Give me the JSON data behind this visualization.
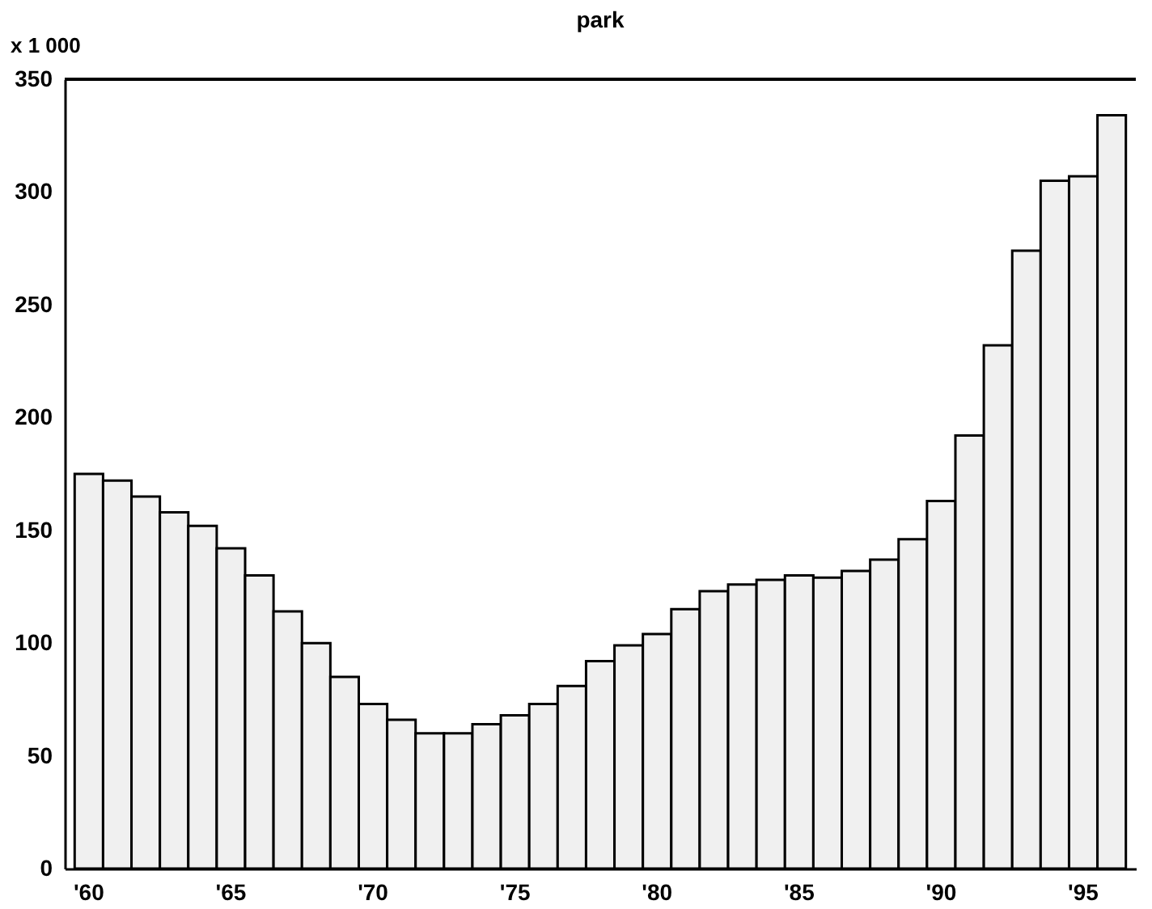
{
  "chart_data": {
    "type": "bar",
    "title": "park",
    "ylabel": "x 1 000",
    "categories": [
      "'60",
      null,
      null,
      null,
      null,
      "'65",
      null,
      null,
      null,
      null,
      "'70",
      null,
      null,
      null,
      null,
      "'75",
      null,
      null,
      null,
      null,
      "'80",
      null,
      null,
      null,
      null,
      "'85",
      null,
      null,
      null,
      null,
      "'90",
      null,
      null,
      null,
      null,
      "'95",
      null
    ],
    "values": [
      175,
      172,
      165,
      158,
      152,
      142,
      130,
      114,
      100,
      85,
      73,
      66,
      60,
      60,
      64,
      68,
      73,
      81,
      92,
      99,
      104,
      115,
      123,
      126,
      128,
      130,
      129,
      132,
      137,
      146,
      163,
      192,
      232,
      274,
      305,
      307,
      334
    ],
    "color": "#f0f0f0",
    "ylim": [
      0,
      350
    ],
    "yticks": [
      0,
      50,
      100,
      150,
      200,
      250,
      300,
      350
    ],
    "grid": false
  }
}
